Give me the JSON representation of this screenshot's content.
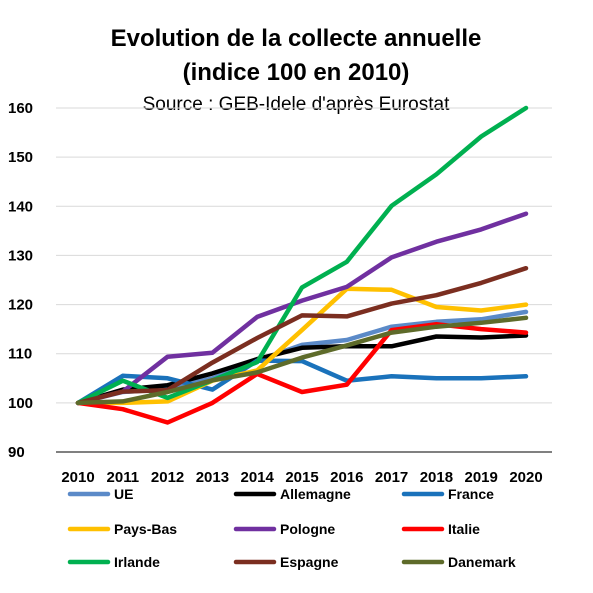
{
  "chart_data": {
    "type": "line",
    "title": "Evolution de la collecte annuelle",
    "title_line2": "(indice 100 en 2010)",
    "subtitle": "Source : GEB-Idele d'après Eurostat",
    "xlabel": "",
    "ylabel": "",
    "x": [
      "2010",
      "2011",
      "2012",
      "2013",
      "2014",
      "2015",
      "2016",
      "2017",
      "2018",
      "2019",
      "2020"
    ],
    "ylim": [
      90,
      160
    ],
    "yticks": [
      90,
      100,
      110,
      120,
      130,
      140,
      150,
      160
    ],
    "grid": true,
    "legend_position": "bottom",
    "series": [
      {
        "name": "UE",
        "color": "#5b8ac8",
        "values": [
          100,
          102.2,
          102.8,
          105,
          108.6,
          111.8,
          112.8,
          115.5,
          116.5,
          117,
          118.5
        ]
      },
      {
        "name": "Allemagne",
        "color": "#000000",
        "values": [
          100,
          102.7,
          103.6,
          106,
          108.9,
          111.2,
          111.5,
          111.5,
          113.5,
          113.3,
          113.7
        ]
      },
      {
        "name": "France",
        "color": "#1a72bb",
        "values": [
          100,
          105.5,
          105,
          102.7,
          108.6,
          108.5,
          104.5,
          105.4,
          105,
          105,
          105.4
        ]
      },
      {
        "name": "Pays-Bas",
        "color": "#ffc000",
        "values": [
          100,
          100,
          100.3,
          104.5,
          106.6,
          114.8,
          123.2,
          123,
          119.5,
          118.8,
          120
        ]
      },
      {
        "name": "Pologne",
        "color": "#7030a0",
        "values": [
          100,
          102.3,
          109.4,
          110.2,
          117.5,
          120.8,
          123.6,
          129.6,
          132.8,
          135.3,
          138.5
        ]
      },
      {
        "name": "Italie",
        "color": "#ff0000",
        "values": [
          100,
          98.7,
          96,
          100,
          105.9,
          102.2,
          103.7,
          114.8,
          116,
          115,
          114.3
        ]
      },
      {
        "name": "Irlande",
        "color": "#00b050",
        "values": [
          100,
          104.5,
          101,
          104.6,
          108.3,
          123.5,
          128.7,
          140.1,
          146.5,
          154.2,
          160
        ]
      },
      {
        "name": "Espagne",
        "color": "#7b2e20",
        "values": [
          100,
          102.3,
          102.6,
          108.2,
          113.2,
          117.8,
          117.6,
          120.2,
          121.9,
          124.4,
          127.4
        ]
      },
      {
        "name": "Danemark",
        "color": "#5e6b2a",
        "values": [
          100,
          100.3,
          102.2,
          104.6,
          106.2,
          109.2,
          111.7,
          114.3,
          115.5,
          116.3,
          117.3
        ]
      }
    ]
  }
}
